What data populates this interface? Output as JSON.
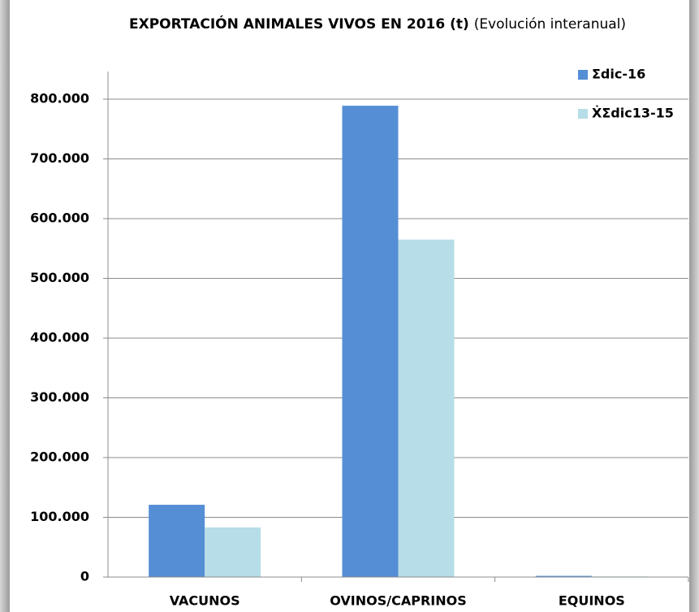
{
  "chart_data": {
    "type": "bar",
    "title": "EXPORTACIÓN ANIMALES VIVOS EN 2016 (t)",
    "subtitle": "(Evolución interanual)",
    "categories": [
      "VACUNOS",
      "OVINOS/CAPRINOS",
      "EQUINOS"
    ],
    "series": [
      {
        "name": "Σdic-16",
        "color": "#558ed5",
        "values": [
          121000,
          789000,
          2000
        ]
      },
      {
        "name": "ẊΣdic13-15",
        "color": "#b7dde8",
        "values": [
          83000,
          565000,
          1000
        ]
      }
    ],
    "ylim": [
      0,
      800000
    ],
    "yticks": [
      0,
      {
        "value": 100000,
        "label": "100.000"
      },
      {
        "value": 200000,
        "label": "200.000"
      },
      {
        "value": 300000,
        "label": "300.000"
      },
      {
        "value": 400000,
        "label": "400.000"
      },
      {
        "value": 500000,
        "label": "500.000"
      },
      {
        "value": 600000,
        "label": "600.000"
      },
      {
        "value": 700000,
        "label": "700.000"
      },
      {
        "value": 800000,
        "label": "800.000"
      }
    ],
    "grid": true,
    "legend": "top-right"
  }
}
